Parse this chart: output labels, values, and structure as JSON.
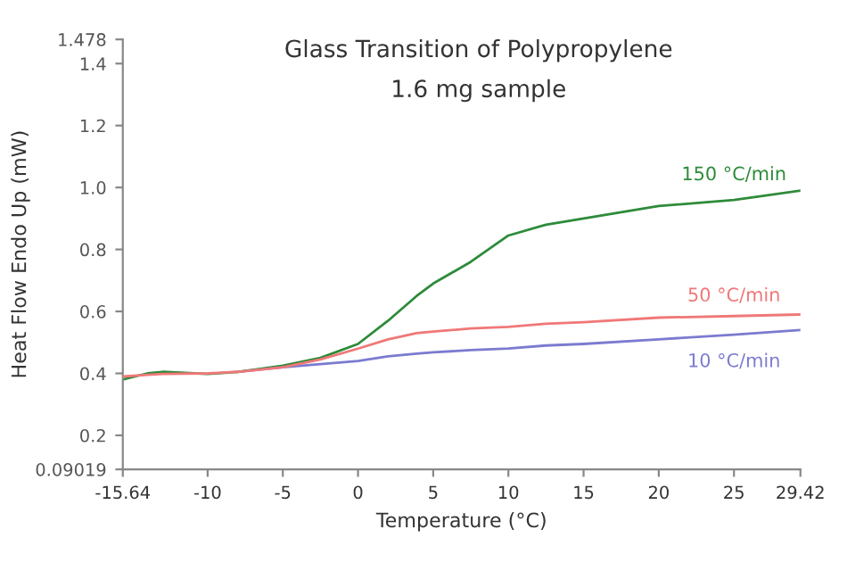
{
  "chart_data": {
    "type": "line",
    "title": "Glass Transition of Polypropylene",
    "subtitle": "1.6 mg sample",
    "xlabel": "Temperature (°C)",
    "ylabel": "Heat Flow Endo Up (mW)",
    "xlim": [
      -15.64,
      29.42
    ],
    "xticks": [
      -15.64,
      -10,
      -5,
      0,
      5,
      10,
      15,
      20,
      25,
      29.42
    ],
    "ylim": [
      0.09019,
      1.478
    ],
    "yticks": [
      0.09019,
      0.2,
      0.4,
      0.6,
      0.8,
      {
        "value": 1.0,
        "label": "1.0"
      },
      1.2,
      1.4,
      1.478
    ],
    "grid": false,
    "legend": false,
    "x": [
      -15.64,
      -14,
      -13,
      -10,
      -8,
      -5,
      -2.5,
      0,
      2,
      3.9,
      5,
      7.5,
      10,
      12.5,
      15,
      20,
      25,
      29.42
    ],
    "series": [
      {
        "name": "150 °C/min",
        "color": "#2e8b3a",
        "values": [
          0.38,
          0.4,
          0.405,
          0.398,
          0.405,
          0.425,
          0.45,
          0.495,
          0.57,
          0.65,
          0.69,
          0.76,
          0.845,
          0.88,
          0.9,
          0.94,
          0.96,
          0.99
        ]
      },
      {
        "name": "50 °C/min",
        "color": "#f07878",
        "values": [
          0.39,
          0.395,
          0.398,
          0.4,
          0.405,
          0.42,
          0.445,
          0.48,
          0.51,
          0.53,
          0.535,
          0.545,
          0.55,
          0.56,
          0.565,
          0.58,
          0.585,
          0.59
        ]
      },
      {
        "name": "10 °C/min",
        "color": "#7b7bd0",
        "values": [
          null,
          null,
          null,
          null,
          0.405,
          0.42,
          0.43,
          0.44,
          0.455,
          0.464,
          0.468,
          0.475,
          0.48,
          0.49,
          0.495,
          0.51,
          0.525,
          0.54
        ]
      }
    ]
  }
}
